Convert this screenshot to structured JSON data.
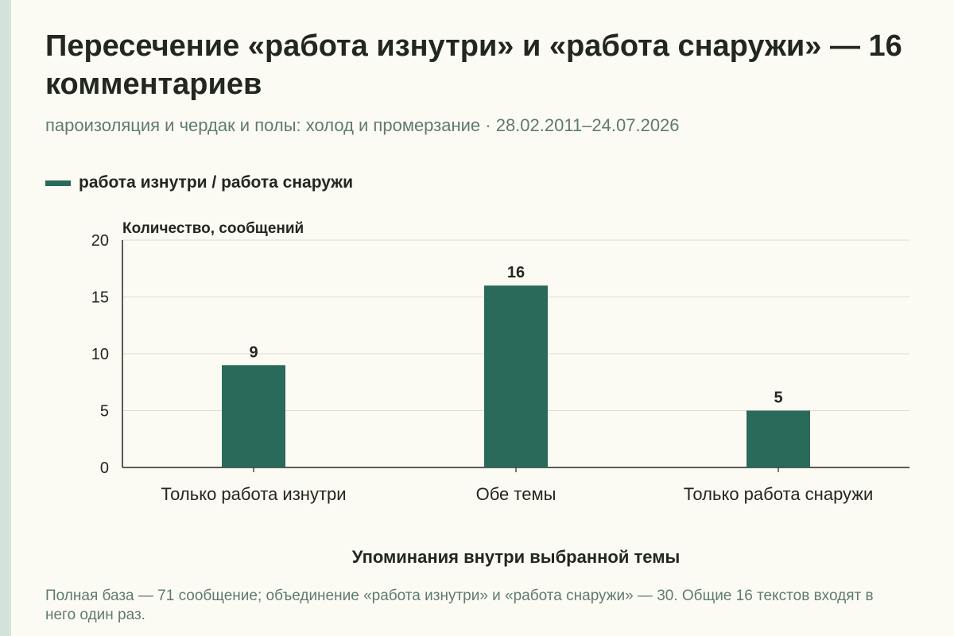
{
  "title": "Пересечение «работа изнутри» и «работа снаружи» — 16 комментариев",
  "subtitle": "пароизоляция и чердак и полы: холод и промерзание · 28.02.2011–24.07.2026",
  "footnote": "Полная база — 71 сообщение; объединение «работа изнутри» и «работа снаружи» — 30. Общие 16 текстов входят в него один раз.",
  "colors": {
    "bar": "#2a6a5b",
    "grid": "#d9dccf",
    "axis": "#22271f",
    "background": "#fcfbf3"
  },
  "chart_data": {
    "type": "bar",
    "categories": [
      "Только работа изнутри",
      "Обе темы",
      "Только работа снаружи"
    ],
    "series": [
      {
        "name": "работа изнутри / работа снаружи",
        "values": [
          9,
          16,
          5
        ]
      }
    ],
    "ylabel": "Количество, сообщений",
    "xlabel": "Упоминания внутри выбранной темы",
    "ylim": [
      0,
      20
    ],
    "yticks": [
      0,
      5,
      10,
      15,
      20
    ],
    "grid": true,
    "legend": "top-left",
    "data_labels": true
  }
}
